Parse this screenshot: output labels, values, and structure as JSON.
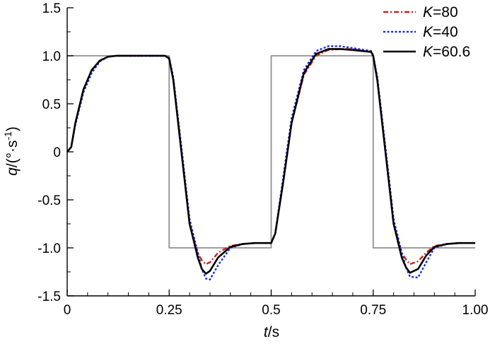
{
  "chart_data": {
    "type": "line",
    "xlim": [
      0,
      1.0
    ],
    "ylim": [
      -1.5,
      1.5
    ],
    "x_ticks": [
      {
        "value": 0,
        "label": "0"
      },
      {
        "value": 0.25,
        "label": "0.25"
      },
      {
        "value": 0.5,
        "label": "0.5"
      },
      {
        "value": 0.75,
        "label": "0.75"
      },
      {
        "value": 1.0,
        "label": "1.00"
      }
    ],
    "y_ticks": [
      {
        "value": 1.5,
        "label": "1.5"
      },
      {
        "value": 1.0,
        "label": "1.0"
      },
      {
        "value": 0.5,
        "label": "0.5"
      },
      {
        "value": 0,
        "label": "0"
      },
      {
        "value": -0.5,
        "label": "-0.5"
      },
      {
        "value": -1.0,
        "label": "-1.0"
      },
      {
        "value": -1.5,
        "label": "-1.5"
      }
    ],
    "xlabel": {
      "var": "t",
      "unit": "/s"
    },
    "ylabel": {
      "var": "q",
      "unit": "/(°·s",
      "sup": "-1",
      "close": ")"
    },
    "grid": false,
    "legend_position": "top-right",
    "series": [
      {
        "name": "K=80",
        "name_var": "K",
        "name_value": "=80",
        "color": "#cc2222",
        "style": "dash-dot",
        "x": [
          0,
          0.01,
          0.02,
          0.04,
          0.06,
          0.08,
          0.1,
          0.12,
          0.15,
          0.2,
          0.24,
          0.25,
          0.26,
          0.28,
          0.3,
          0.32,
          0.33,
          0.34,
          0.35,
          0.37,
          0.4,
          0.43,
          0.46,
          0.5,
          0.51,
          0.53,
          0.55,
          0.58,
          0.61,
          0.64,
          0.67,
          0.7,
          0.745,
          0.75,
          0.76,
          0.78,
          0.8,
          0.82,
          0.83,
          0.84,
          0.86,
          0.88,
          0.9,
          0.93,
          0.96,
          1.0
        ],
        "y": [
          0,
          0.05,
          0.3,
          0.65,
          0.85,
          0.95,
          0.99,
          1.0,
          1.0,
          1.0,
          1.0,
          0.97,
          0.75,
          0.0,
          -0.75,
          -1.05,
          -1.13,
          -1.17,
          -1.15,
          -1.05,
          -0.98,
          -0.96,
          -0.95,
          -0.95,
          -0.85,
          -0.3,
          0.3,
          0.8,
          1.0,
          1.06,
          1.07,
          1.07,
          1.04,
          1.0,
          0.75,
          0.0,
          -0.75,
          -1.05,
          -1.12,
          -1.17,
          -1.14,
          -1.05,
          -0.98,
          -0.96,
          -0.95,
          -0.95
        ]
      },
      {
        "name": "K=40",
        "name_var": "K",
        "name_value": "=40",
        "color": "#1a2ed6",
        "style": "dotted",
        "x": [
          0,
          0.01,
          0.02,
          0.04,
          0.06,
          0.08,
          0.1,
          0.12,
          0.15,
          0.2,
          0.24,
          0.25,
          0.26,
          0.28,
          0.3,
          0.32,
          0.33,
          0.34,
          0.35,
          0.37,
          0.4,
          0.43,
          0.46,
          0.5,
          0.51,
          0.53,
          0.55,
          0.58,
          0.61,
          0.64,
          0.67,
          0.7,
          0.745,
          0.75,
          0.76,
          0.78,
          0.8,
          0.82,
          0.83,
          0.84,
          0.86,
          0.88,
          0.9,
          0.93,
          0.96,
          1.0
        ],
        "y": [
          0,
          0.05,
          0.28,
          0.62,
          0.82,
          0.94,
          0.99,
          1.0,
          1.0,
          1.0,
          1.0,
          0.98,
          0.78,
          0.05,
          -0.7,
          -1.05,
          -1.22,
          -1.32,
          -1.33,
          -1.18,
          -1.0,
          -0.96,
          -0.95,
          -0.95,
          -0.85,
          -0.25,
          0.35,
          0.85,
          1.05,
          1.1,
          1.1,
          1.08,
          1.05,
          1.0,
          0.78,
          0.05,
          -0.7,
          -1.05,
          -1.2,
          -1.3,
          -1.31,
          -1.15,
          -1.0,
          -0.96,
          -0.95,
          -0.95
        ]
      },
      {
        "name": "K=60.6",
        "name_var": "K",
        "name_value": "=60.6",
        "color": "#000000",
        "style": "solid",
        "x": [
          0,
          0.01,
          0.02,
          0.04,
          0.06,
          0.08,
          0.1,
          0.12,
          0.15,
          0.2,
          0.24,
          0.25,
          0.26,
          0.28,
          0.3,
          0.32,
          0.33,
          0.34,
          0.35,
          0.37,
          0.4,
          0.43,
          0.46,
          0.5,
          0.51,
          0.53,
          0.55,
          0.58,
          0.61,
          0.64,
          0.67,
          0.7,
          0.745,
          0.75,
          0.76,
          0.78,
          0.8,
          0.82,
          0.83,
          0.84,
          0.86,
          0.88,
          0.9,
          0.93,
          0.96,
          1.0
        ],
        "y": [
          0,
          0.05,
          0.3,
          0.65,
          0.85,
          0.95,
          0.99,
          1.0,
          1.0,
          1.0,
          1.0,
          0.97,
          0.75,
          0.0,
          -0.75,
          -1.1,
          -1.22,
          -1.27,
          -1.24,
          -1.1,
          -0.99,
          -0.96,
          -0.95,
          -0.95,
          -0.85,
          -0.3,
          0.3,
          0.82,
          1.02,
          1.07,
          1.07,
          1.06,
          1.04,
          1.0,
          0.75,
          0.0,
          -0.75,
          -1.1,
          -1.2,
          -1.26,
          -1.22,
          -1.08,
          -0.99,
          -0.96,
          -0.95,
          -0.95
        ]
      },
      {
        "name": "",
        "color": "#909090",
        "style": "solid",
        "x": [
          0,
          0.25,
          0.25,
          0.5,
          0.5,
          0.75,
          0.75,
          1.0
        ],
        "y": [
          1.0,
          1.0,
          -1.0,
          -1.0,
          1.0,
          1.0,
          -1.0,
          -1.0
        ]
      }
    ]
  }
}
